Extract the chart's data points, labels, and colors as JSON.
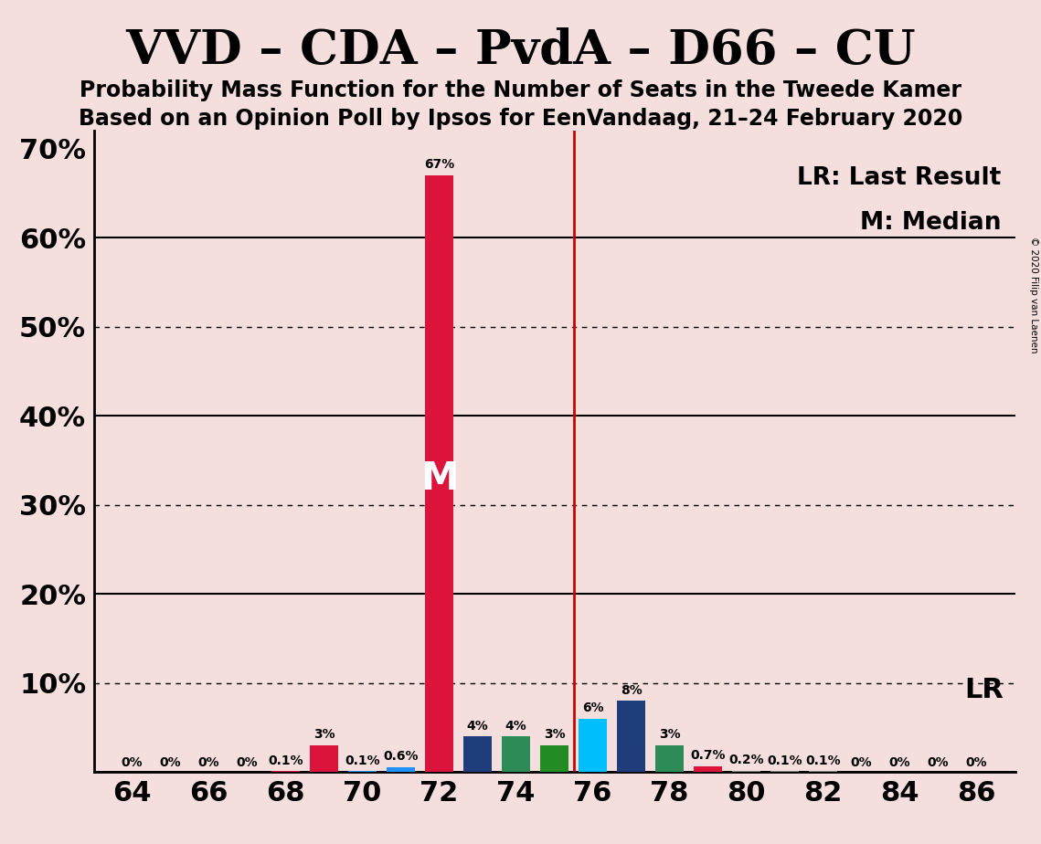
{
  "title": "VVD – CDA – PvdA – D66 – CU",
  "subtitle1": "Probability Mass Function for the Number of Seats in the Tweede Kamer",
  "subtitle2": "Based on an Opinion Poll by Ipsos for EenVandaag, 21–24 February 2020",
  "copyright": "© 2020 Filip van Laenen",
  "background_color": "#f5dede",
  "bar_data": [
    {
      "seat": 64,
      "value": 0.0,
      "color": "#888888",
      "label": "0%"
    },
    {
      "seat": 65,
      "value": 0.0,
      "color": "#888888",
      "label": "0%"
    },
    {
      "seat": 66,
      "value": 0.0,
      "color": "#888888",
      "label": "0%"
    },
    {
      "seat": 67,
      "value": 0.0,
      "color": "#888888",
      "label": "0%"
    },
    {
      "seat": 68,
      "value": 0.1,
      "color": "#dc143c",
      "label": "0.1%"
    },
    {
      "seat": 69,
      "value": 3.0,
      "color": "#dc143c",
      "label": "3%"
    },
    {
      "seat": 70,
      "value": 0.1,
      "color": "#1e90ff",
      "label": "0.1%"
    },
    {
      "seat": 71,
      "value": 0.6,
      "color": "#1e90ff",
      "label": "0.6%"
    },
    {
      "seat": 72,
      "value": 67.0,
      "color": "#dc143c",
      "label": "67%"
    },
    {
      "seat": 73,
      "value": 4.0,
      "color": "#1f3d7a",
      "label": "4%"
    },
    {
      "seat": 74,
      "value": 4.0,
      "color": "#2e8b57",
      "label": "4%"
    },
    {
      "seat": 75,
      "value": 3.0,
      "color": "#228b22",
      "label": "3%"
    },
    {
      "seat": 76,
      "value": 6.0,
      "color": "#00bfff",
      "label": "6%"
    },
    {
      "seat": 77,
      "value": 8.0,
      "color": "#1f3d7a",
      "label": "8%"
    },
    {
      "seat": 78,
      "value": 3.0,
      "color": "#2e8b57",
      "label": "3%"
    },
    {
      "seat": 79,
      "value": 0.7,
      "color": "#dc143c",
      "label": "0.7%"
    },
    {
      "seat": 80,
      "value": 0.2,
      "color": "#888888",
      "label": "0.2%"
    },
    {
      "seat": 81,
      "value": 0.1,
      "color": "#888888",
      "label": "0.1%"
    },
    {
      "seat": 82,
      "value": 0.1,
      "color": "#888888",
      "label": "0.1%"
    },
    {
      "seat": 83,
      "value": 0.0,
      "color": "#888888",
      "label": "0%"
    },
    {
      "seat": 84,
      "value": 0.0,
      "color": "#888888",
      "label": "0%"
    },
    {
      "seat": 85,
      "value": 0.0,
      "color": "#888888",
      "label": "0%"
    },
    {
      "seat": 86,
      "value": 0.0,
      "color": "#888888",
      "label": "0%"
    }
  ],
  "median_seat": 72,
  "median_label": "M",
  "lr_seat": 75.5,
  "lr_label": "LR",
  "lr_legend": "LR: Last Result",
  "m_legend": "M: Median",
  "xlim": [
    63.0,
    87.0
  ],
  "ylim": [
    0,
    72
  ],
  "xticks": [
    64,
    66,
    68,
    70,
    72,
    74,
    76,
    78,
    80,
    82,
    84,
    86
  ],
  "ytick_positions": [
    0,
    10,
    20,
    30,
    40,
    50,
    60,
    70
  ],
  "ytick_labels": [
    "",
    "10%",
    "20%",
    "30%",
    "40%",
    "50%",
    "60%",
    "70%"
  ],
  "solid_gridlines": [
    20,
    40,
    60
  ],
  "dotted_gridlines": [
    10,
    30,
    50
  ],
  "bar_width": 0.75,
  "red_line_color": "#cc0000",
  "title_fontsize": 38,
  "subtitle_fontsize": 17,
  "label_fontsize": 10,
  "axis_tick_fontsize": 22,
  "legend_fontsize": 19,
  "median_text_color": "#ffffff",
  "median_text_fontsize": 30,
  "lr_text_fontsize": 22
}
